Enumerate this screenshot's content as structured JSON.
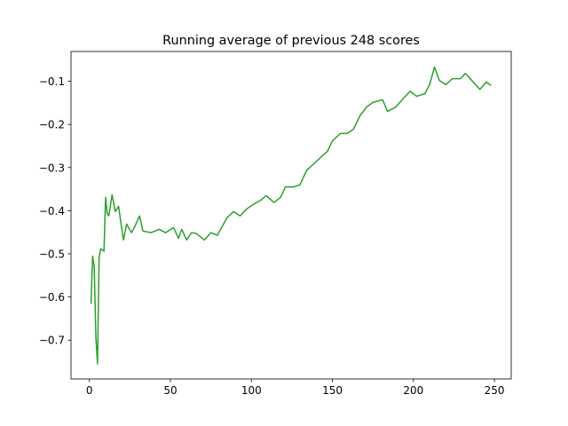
{
  "chart_data": {
    "type": "line",
    "title": "Running average of previous 248 scores",
    "x": [
      1,
      2,
      3,
      4,
      5,
      6,
      7,
      9,
      10,
      11,
      12,
      14,
      16,
      18,
      21,
      23,
      26,
      28,
      31,
      33,
      38,
      43,
      47,
      52,
      55,
      57,
      60,
      63,
      66,
      71,
      75,
      79,
      85,
      89,
      93,
      97,
      101,
      106,
      109,
      114,
      118,
      121,
      126,
      130,
      134,
      138,
      142,
      147,
      150,
      155,
      159,
      163,
      167,
      171,
      175,
      181,
      184,
      189,
      194,
      198,
      202,
      207,
      210,
      213,
      216,
      220,
      224,
      229,
      232,
      236,
      241,
      245,
      248
    ],
    "series": [
      {
        "name": "Running average",
        "color": "#2ca02c",
        "values": [
          -0.616,
          -0.505,
          -0.53,
          -0.694,
          -0.755,
          -0.509,
          -0.488,
          -0.494,
          -0.369,
          -0.406,
          -0.412,
          -0.363,
          -0.402,
          -0.39,
          -0.468,
          -0.431,
          -0.451,
          -0.437,
          -0.412,
          -0.447,
          -0.451,
          -0.443,
          -0.451,
          -0.439,
          -0.464,
          -0.443,
          -0.468,
          -0.451,
          -0.453,
          -0.468,
          -0.451,
          -0.457,
          -0.416,
          -0.402,
          -0.412,
          -0.396,
          -0.386,
          -0.375,
          -0.365,
          -0.381,
          -0.369,
          -0.345,
          -0.345,
          -0.34,
          -0.307,
          -0.293,
          -0.279,
          -0.262,
          -0.238,
          -0.221,
          -0.221,
          -0.211,
          -0.18,
          -0.16,
          -0.149,
          -0.143,
          -0.17,
          -0.16,
          -0.139,
          -0.123,
          -0.135,
          -0.129,
          -0.108,
          -0.067,
          -0.098,
          -0.108,
          -0.094,
          -0.094,
          -0.082,
          -0.098,
          -0.119,
          -0.102,
          -0.11
        ]
      }
    ],
    "xlim": [
      -11.35,
      260.35
    ],
    "xticks": [
      0,
      50,
      100,
      150,
      200,
      250
    ],
    "ylim": [
      -0.79,
      -0.031
    ],
    "yticks": [
      {
        "value": -0.7,
        "label": "−0.7"
      },
      {
        "value": -0.6,
        "label": "−0.6"
      },
      {
        "value": -0.5,
        "label": "−0.5"
      },
      {
        "value": -0.4,
        "label": "−0.4"
      },
      {
        "value": -0.3,
        "label": "−0.3"
      },
      {
        "value": -0.2,
        "label": "−0.2"
      },
      {
        "value": -0.1,
        "label": "−0.1"
      }
    ],
    "grid": false
  }
}
